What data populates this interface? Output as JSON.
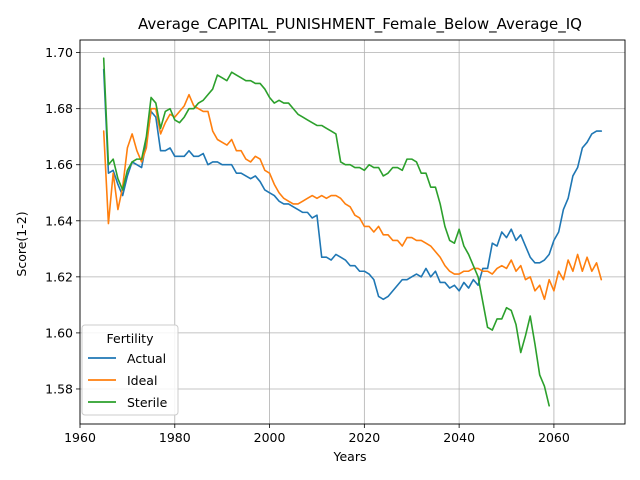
{
  "chart_data": {
    "type": "line",
    "title": "Average_CAPITAL_PUNISHMENT_Female_Below_Average_IQ",
    "xlabel": "Years",
    "ylabel": "Score(1-2)",
    "xlim": [
      1960,
      2075
    ],
    "ylim": [
      1.5675,
      1.7045
    ],
    "xticks": [
      1960,
      1980,
      2000,
      2020,
      2040,
      2060
    ],
    "yticks": [
      1.58,
      1.6,
      1.62,
      1.64,
      1.66,
      1.68,
      1.7
    ],
    "ytick_labels": [
      "1.58",
      "1.60",
      "1.62",
      "1.64",
      "1.66",
      "1.68",
      "1.70"
    ],
    "grid": true,
    "legend": {
      "title": "Fertility",
      "position": "lower-left"
    },
    "series": [
      {
        "name": "Actual",
        "color": "#1f77b4",
        "x": [
          1965,
          1966,
          1967,
          1968,
          1969,
          1970,
          1971,
          1972,
          1973,
          1974,
          1975,
          1976,
          1977,
          1978,
          1979,
          1980,
          1981,
          1982,
          1983,
          1984,
          1985,
          1986,
          1987,
          1988,
          1989,
          1990,
          1991,
          1992,
          1993,
          1994,
          1995,
          1996,
          1997,
          1998,
          1999,
          2000,
          2001,
          2002,
          2003,
          2004,
          2005,
          2006,
          2007,
          2008,
          2009,
          2010,
          2011,
          2012,
          2013,
          2014,
          2015,
          2016,
          2017,
          2018,
          2019,
          2020,
          2021,
          2022,
          2023,
          2024,
          2025,
          2026,
          2027,
          2028,
          2029,
          2030,
          2031,
          2032,
          2033,
          2034,
          2035,
          2036,
          2037,
          2038,
          2039,
          2040,
          2041,
          2042,
          2043,
          2044,
          2045,
          2046,
          2047,
          2048,
          2049,
          2050,
          2051,
          2052,
          2053,
          2054,
          2055,
          2056,
          2057,
          2058,
          2059,
          2060,
          2061,
          2062,
          2063,
          2064,
          2065,
          2066,
          2067,
          2068,
          2069,
          2070
        ],
        "values": [
          1.694,
          1.657,
          1.658,
          1.653,
          1.649,
          1.656,
          1.661,
          1.66,
          1.659,
          1.668,
          1.679,
          1.677,
          1.665,
          1.665,
          1.666,
          1.663,
          1.663,
          1.663,
          1.665,
          1.663,
          1.663,
          1.664,
          1.66,
          1.661,
          1.661,
          1.66,
          1.66,
          1.66,
          1.657,
          1.657,
          1.656,
          1.655,
          1.656,
          1.654,
          1.651,
          1.65,
          1.649,
          1.647,
          1.646,
          1.646,
          1.645,
          1.644,
          1.643,
          1.643,
          1.641,
          1.642,
          1.627,
          1.627,
          1.626,
          1.628,
          1.627,
          1.626,
          1.624,
          1.624,
          1.622,
          1.622,
          1.621,
          1.619,
          1.613,
          1.612,
          1.613,
          1.615,
          1.617,
          1.619,
          1.619,
          1.62,
          1.621,
          1.62,
          1.623,
          1.62,
          1.622,
          1.618,
          1.618,
          1.616,
          1.617,
          1.615,
          1.618,
          1.616,
          1.619,
          1.617,
          1.623,
          1.623,
          1.632,
          1.631,
          1.636,
          1.634,
          1.637,
          1.633,
          1.635,
          1.631,
          1.627,
          1.625,
          1.625,
          1.626,
          1.628,
          1.633,
          1.636,
          1.644,
          1.648,
          1.656,
          1.659,
          1.666,
          1.668,
          1.671,
          1.672,
          1.672
        ]
      },
      {
        "name": "Ideal",
        "color": "#ff7f0e",
        "x": [
          1965,
          1966,
          1967,
          1968,
          1969,
          1970,
          1971,
          1972,
          1973,
          1974,
          1975,
          1976,
          1977,
          1978,
          1979,
          1980,
          1981,
          1982,
          1983,
          1984,
          1985,
          1986,
          1987,
          1988,
          1989,
          1990,
          1991,
          1992,
          1993,
          1994,
          1995,
          1996,
          1997,
          1998,
          1999,
          2000,
          2001,
          2002,
          2003,
          2004,
          2005,
          2006,
          2007,
          2008,
          2009,
          2010,
          2011,
          2012,
          2013,
          2014,
          2015,
          2016,
          2017,
          2018,
          2019,
          2020,
          2021,
          2022,
          2023,
          2024,
          2025,
          2026,
          2027,
          2028,
          2029,
          2030,
          2031,
          2032,
          2033,
          2034,
          2035,
          2036,
          2037,
          2038,
          2039,
          2040,
          2041,
          2042,
          2043,
          2044,
          2045,
          2046,
          2047,
          2048,
          2049,
          2050,
          2051,
          2052,
          2053,
          2054,
          2055,
          2056,
          2057,
          2058,
          2059,
          2060,
          2061,
          2062,
          2063,
          2064,
          2065,
          2066,
          2067,
          2068,
          2069,
          2070
        ],
        "values": [
          1.672,
          1.639,
          1.657,
          1.644,
          1.652,
          1.666,
          1.671,
          1.665,
          1.661,
          1.666,
          1.68,
          1.68,
          1.671,
          1.675,
          1.678,
          1.677,
          1.679,
          1.681,
          1.685,
          1.681,
          1.68,
          1.679,
          1.679,
          1.672,
          1.669,
          1.668,
          1.667,
          1.669,
          1.665,
          1.665,
          1.662,
          1.661,
          1.663,
          1.662,
          1.658,
          1.657,
          1.653,
          1.65,
          1.648,
          1.647,
          1.646,
          1.646,
          1.647,
          1.648,
          1.649,
          1.648,
          1.649,
          1.648,
          1.649,
          1.649,
          1.648,
          1.646,
          1.645,
          1.642,
          1.641,
          1.638,
          1.638,
          1.636,
          1.638,
          1.635,
          1.635,
          1.633,
          1.633,
          1.631,
          1.634,
          1.634,
          1.633,
          1.633,
          1.632,
          1.631,
          1.629,
          1.627,
          1.624,
          1.622,
          1.621,
          1.621,
          1.622,
          1.622,
          1.623,
          1.623,
          1.622,
          1.622,
          1.621,
          1.623,
          1.624,
          1.623,
          1.626,
          1.622,
          1.624,
          1.619,
          1.62,
          1.615,
          1.617,
          1.612,
          1.619,
          1.615,
          1.622,
          1.619,
          1.626,
          1.622,
          1.628,
          1.622,
          1.627,
          1.622,
          1.625,
          1.619
        ]
      },
      {
        "name": "Sterile",
        "color": "#2ca02c",
        "x": [
          1965,
          1966,
          1967,
          1968,
          1969,
          1970,
          1971,
          1972,
          1973,
          1974,
          1975,
          1976,
          1977,
          1978,
          1979,
          1980,
          1981,
          1982,
          1983,
          1984,
          1985,
          1986,
          1987,
          1988,
          1989,
          1990,
          1991,
          1992,
          1993,
          1994,
          1995,
          1996,
          1997,
          1998,
          1999,
          2000,
          2001,
          2002,
          2003,
          2004,
          2005,
          2006,
          2007,
          2008,
          2009,
          2010,
          2011,
          2012,
          2013,
          2014,
          2015,
          2016,
          2017,
          2018,
          2019,
          2020,
          2021,
          2022,
          2023,
          2024,
          2025,
          2026,
          2027,
          2028,
          2029,
          2030,
          2031,
          2032,
          2033,
          2034,
          2035,
          2036,
          2037,
          2038,
          2039,
          2040,
          2041,
          2042,
          2043,
          2044,
          2045,
          2046,
          2047,
          2048,
          2049,
          2050,
          2051,
          2052,
          2053,
          2054,
          2055,
          2056,
          2057,
          2058,
          2059
        ],
        "values": [
          1.698,
          1.66,
          1.662,
          1.655,
          1.651,
          1.658,
          1.661,
          1.662,
          1.662,
          1.67,
          1.684,
          1.682,
          1.673,
          1.679,
          1.68,
          1.676,
          1.675,
          1.677,
          1.68,
          1.68,
          1.682,
          1.683,
          1.685,
          1.687,
          1.692,
          1.691,
          1.69,
          1.693,
          1.692,
          1.691,
          1.69,
          1.69,
          1.689,
          1.689,
          1.687,
          1.684,
          1.682,
          1.683,
          1.682,
          1.682,
          1.68,
          1.678,
          1.677,
          1.676,
          1.675,
          1.674,
          1.674,
          1.673,
          1.672,
          1.671,
          1.661,
          1.66,
          1.66,
          1.659,
          1.659,
          1.658,
          1.66,
          1.659,
          1.659,
          1.656,
          1.657,
          1.659,
          1.659,
          1.658,
          1.662,
          1.662,
          1.661,
          1.657,
          1.657,
          1.652,
          1.652,
          1.646,
          1.638,
          1.633,
          1.632,
          1.637,
          1.631,
          1.628,
          1.624,
          1.62,
          1.611,
          1.602,
          1.601,
          1.605,
          1.605,
          1.609,
          1.608,
          1.603,
          1.593,
          1.599,
          1.606,
          1.596,
          1.585,
          1.581,
          1.574
        ]
      }
    ]
  }
}
